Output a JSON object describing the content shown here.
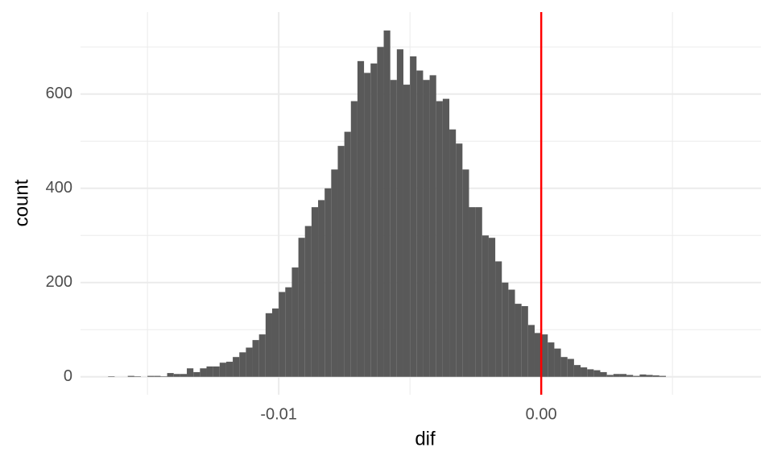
{
  "chart_data": {
    "type": "histogram",
    "x_label": "dif",
    "y_label": "count",
    "bins": [
      -0.0165,
      -0.01625,
      -0.016,
      -0.01575,
      -0.0155,
      -0.01525,
      -0.015,
      -0.01475,
      -0.0145,
      -0.01425,
      -0.014,
      -0.01375,
      -0.0135,
      -0.01325,
      -0.013,
      -0.01275,
      -0.0125,
      -0.01225,
      -0.012,
      -0.01175,
      -0.0115,
      -0.01125,
      -0.011,
      -0.01075,
      -0.0105,
      -0.01025,
      -0.01,
      -0.00975,
      -0.0095,
      -0.00925,
      -0.009,
      -0.00875,
      -0.0085,
      -0.00825,
      -0.008,
      -0.00775,
      -0.0075,
      -0.00725,
      -0.007,
      -0.00675,
      -0.0065,
      -0.00625,
      -0.006,
      -0.00575,
      -0.0055,
      -0.00525,
      -0.005,
      -0.00475,
      -0.0045,
      -0.00425,
      -0.004,
      -0.00375,
      -0.0035,
      -0.00325,
      -0.003,
      -0.00275,
      -0.0025,
      -0.00225,
      -0.002,
      -0.00175,
      -0.0015,
      -0.00125,
      -0.001,
      -0.00075,
      -0.0005,
      -0.00025,
      0,
      0.00025,
      0.0005,
      0.00075,
      0.001,
      0.00125,
      0.0015,
      0.00175,
      0.002,
      0.00225,
      0.0025,
      0.00275,
      0.003,
      0.00325,
      0.0035,
      0.00375,
      0.004,
      0.00425,
      0.0045,
      0.00475
    ],
    "values": [
      1,
      0,
      0,
      2,
      1,
      0,
      2,
      2,
      1,
      8,
      6,
      6,
      18,
      10,
      18,
      22,
      22,
      30,
      32,
      42,
      52,
      62,
      78,
      90,
      135,
      145,
      180,
      190,
      232,
      295,
      320,
      360,
      375,
      400,
      440,
      490,
      520,
      585,
      670,
      645,
      665,
      700,
      735,
      630,
      695,
      620,
      680,
      650,
      630,
      640,
      585,
      590,
      525,
      495,
      440,
      360,
      360,
      300,
      295,
      245,
      200,
      185,
      155,
      150,
      110,
      93,
      90,
      73,
      60,
      42,
      38,
      25,
      20,
      16,
      14,
      10,
      4,
      6,
      6,
      4,
      2,
      5,
      4,
      3,
      2
    ],
    "color": "#595959",
    "xlim": [
      -0.01755,
      0.00837
    ],
    "ylim": [
      -38,
      774
    ],
    "xticks": [
      {
        "value": -0.01,
        "label": "-0.01"
      },
      {
        "value": 0,
        "label": "0.00"
      }
    ],
    "x_minor_ticks": [
      -0.015,
      -0.005,
      0.005
    ],
    "yticks": [
      0,
      200,
      400,
      600
    ],
    "y_minor_ticks": [
      100,
      300,
      500,
      700
    ],
    "grid": true,
    "vline": {
      "x": 0,
      "color": "#ff0000"
    }
  }
}
